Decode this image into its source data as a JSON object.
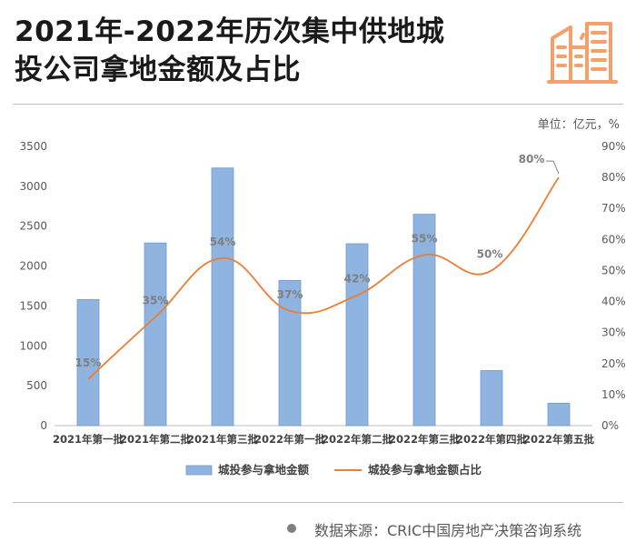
{
  "header": {
    "title_line1": "2021年-2022年历次集中供地城",
    "title_line2": "投公司拿地金额及占比",
    "logo_icon": "city-buildings-icon",
    "accent_color": "#f4a06b"
  },
  "unit_label": "单位：亿元，%",
  "footer": {
    "source": "数据来源：CRIC中国房地产决策咨询系统"
  },
  "chart_data": {
    "type": "bar",
    "categories": [
      "2021年第一批",
      "2021年第二批",
      "2021年第三批",
      "2022年第一批",
      "2022年第二批",
      "2022年第三批",
      "2022年第四批",
      "2022年第五批"
    ],
    "series": [
      {
        "name": "城投参与拿地金额",
        "type": "bar",
        "axis": "left",
        "color": "#8fb4df",
        "values": [
          1580,
          2290,
          3230,
          1820,
          2280,
          2650,
          690,
          280
        ]
      },
      {
        "name": "城投参与拿地金额占比",
        "type": "line",
        "axis": "right",
        "color": "#ed7d31",
        "values": [
          15,
          35,
          54,
          37,
          42,
          55,
          50,
          80
        ]
      }
    ],
    "data_labels": [
      "15%",
      "35%",
      "54%",
      "37%",
      "42%",
      "55%",
      "50%",
      "80%"
    ],
    "y_left": {
      "min": 0,
      "max": 3500,
      "ticks": [
        "0",
        "500",
        "1000",
        "1500",
        "2000",
        "2500",
        "3000",
        "3500"
      ]
    },
    "y_right": {
      "min": 0,
      "max": 90,
      "ticks": [
        "0%",
        "10%",
        "20%",
        "30%",
        "40%",
        "50%",
        "60%",
        "70%",
        "80%",
        "90%"
      ]
    },
    "legend_position": "bottom",
    "grid": false
  }
}
